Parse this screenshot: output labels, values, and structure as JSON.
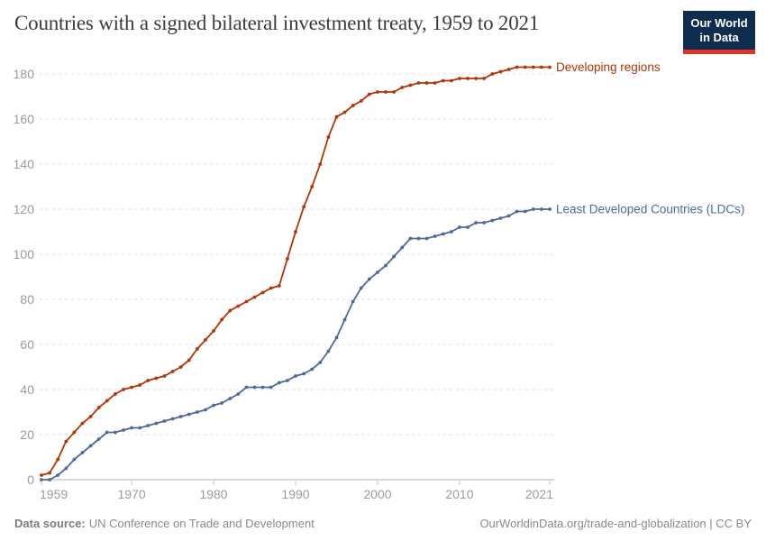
{
  "header": {
    "title": "Countries with a signed bilateral investment treaty, 1959 to 2021",
    "logo": {
      "line1": "Our World",
      "line2": "in Data"
    }
  },
  "chart_data": {
    "type": "line",
    "title": "Countries with a signed bilateral investment treaty, 1959 to 2021",
    "xlabel": "",
    "ylabel": "",
    "xlim": [
      1959,
      2021
    ],
    "ylim": [
      0,
      180
    ],
    "grid": "horizontal-dashed",
    "legend_position": "line-end-labels",
    "yticks": [
      0,
      20,
      40,
      60,
      80,
      100,
      120,
      140,
      160,
      180
    ],
    "xticks": [
      1959,
      1970,
      1980,
      1990,
      2000,
      2010,
      2021
    ],
    "x": [
      1959,
      1960,
      1961,
      1962,
      1963,
      1964,
      1965,
      1966,
      1967,
      1968,
      1969,
      1970,
      1971,
      1972,
      1973,
      1974,
      1975,
      1976,
      1977,
      1978,
      1979,
      1980,
      1981,
      1982,
      1983,
      1984,
      1985,
      1986,
      1987,
      1988,
      1989,
      1990,
      1991,
      1992,
      1993,
      1994,
      1995,
      1996,
      1997,
      1998,
      1999,
      2000,
      2001,
      2002,
      2003,
      2004,
      2005,
      2006,
      2007,
      2008,
      2009,
      2010,
      2011,
      2012,
      2013,
      2014,
      2015,
      2016,
      2017,
      2018,
      2019,
      2020,
      2021
    ],
    "series": [
      {
        "name": "Developing regions",
        "color": "#b13507",
        "values": [
          2,
          3,
          9,
          17,
          21,
          25,
          28,
          32,
          35,
          38,
          40,
          41,
          42,
          44,
          45,
          46,
          48,
          50,
          53,
          58,
          62,
          66,
          71,
          75,
          77,
          79,
          81,
          83,
          85,
          86,
          98,
          110,
          121,
          130,
          140,
          152,
          161,
          163,
          166,
          168,
          171,
          172,
          172,
          172,
          174,
          175,
          176,
          176,
          176,
          177,
          177,
          178,
          178,
          178,
          178,
          180,
          181,
          182,
          183,
          183,
          183,
          183,
          183
        ]
      },
      {
        "name": "Least Developed Countries (LDCs)",
        "color": "#4c6a9c",
        "values": [
          0,
          0,
          2,
          5,
          9,
          12,
          15,
          18,
          21,
          21,
          22,
          23,
          23,
          24,
          25,
          26,
          27,
          28,
          29,
          30,
          31,
          33,
          34,
          36,
          38,
          41,
          41,
          41,
          41,
          43,
          44,
          46,
          47,
          49,
          52,
          57,
          63,
          71,
          79,
          85,
          89,
          92,
          95,
          99,
          103,
          107,
          107,
          107,
          108,
          109,
          110,
          112,
          112,
          114,
          114,
          115,
          116,
          117,
          119,
          119,
          120,
          120,
          120
        ]
      }
    ]
  },
  "footer": {
    "source_label": "Data source:",
    "source_text": "UN Conference on Trade and Development",
    "credit": "OurWorldinData.org/trade-and-globalization | CC BY"
  },
  "colors": {
    "developing_regions": "#b13507",
    "ldcs": "#4c6a9c",
    "logo_navy": "#0f2d4e",
    "logo_red": "#dd352c",
    "axis_text": "#9b9b9b",
    "gridline": "#dcdcdc"
  }
}
